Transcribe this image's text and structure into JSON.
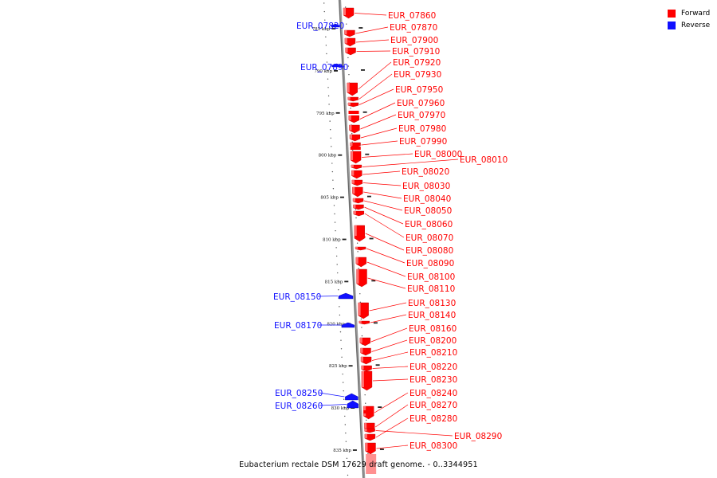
{
  "legend": {
    "forward_label": "Forward",
    "reverse_label": "Reverse",
    "forward_color": "#ff0000",
    "reverse_color": "#1010ff"
  },
  "footer": "Eubacterium rectale DSM 17629 draft genome. - 0..3344951",
  "ticks": [
    {
      "kbp": 785,
      "label": "785 kbp"
    },
    {
      "kbp": 790,
      "label": "790 kbp"
    },
    {
      "kbp": 795,
      "label": "795 kbp"
    },
    {
      "kbp": 800,
      "label": "800 kbp"
    },
    {
      "kbp": 805,
      "label": "805 kbp"
    },
    {
      "kbp": 810,
      "label": "810 kbp"
    },
    {
      "kbp": 815,
      "label": "815 kbp"
    },
    {
      "kbp": 820,
      "label": "820 kbp"
    },
    {
      "kbp": 825,
      "label": "825 kbp"
    },
    {
      "kbp": 830,
      "label": "830 kbp"
    },
    {
      "kbp": 835,
      "label": "835 kbp"
    }
  ],
  "genes": [
    {
      "name": "EUR_07820",
      "strand": "reverse"
    },
    {
      "name": "EUR_07860",
      "strand": "forward"
    },
    {
      "name": "EUR_07870",
      "strand": "forward"
    },
    {
      "name": "EUR_07890",
      "strand": "reverse"
    },
    {
      "name": "EUR_07900",
      "strand": "forward"
    },
    {
      "name": "EUR_07910",
      "strand": "forward"
    },
    {
      "name": "EUR_07920",
      "strand": "forward"
    },
    {
      "name": "EUR_07930",
      "strand": "forward"
    },
    {
      "name": "EUR_07950",
      "strand": "forward"
    },
    {
      "name": "EUR_07960",
      "strand": "forward"
    },
    {
      "name": "EUR_07970",
      "strand": "forward"
    },
    {
      "name": "EUR_07980",
      "strand": "forward"
    },
    {
      "name": "EUR_07990",
      "strand": "forward"
    },
    {
      "name": "EUR_08000",
      "strand": "forward"
    },
    {
      "name": "EUR_08010",
      "strand": "forward"
    },
    {
      "name": "EUR_08020",
      "strand": "forward"
    },
    {
      "name": "EUR_08030",
      "strand": "forward"
    },
    {
      "name": "EUR_08040",
      "strand": "forward"
    },
    {
      "name": "EUR_08050",
      "strand": "forward"
    },
    {
      "name": "EUR_08060",
      "strand": "forward"
    },
    {
      "name": "EUR_08070",
      "strand": "forward"
    },
    {
      "name": "EUR_08080",
      "strand": "forward"
    },
    {
      "name": "EUR_08090",
      "strand": "forward"
    },
    {
      "name": "EUR_08100",
      "strand": "forward"
    },
    {
      "name": "EUR_08110",
      "strand": "forward"
    },
    {
      "name": "EUR_08130",
      "strand": "forward"
    },
    {
      "name": "EUR_08140",
      "strand": "forward"
    },
    {
      "name": "EUR_08150",
      "strand": "reverse"
    },
    {
      "name": "EUR_08160",
      "strand": "forward"
    },
    {
      "name": "EUR_08170",
      "strand": "reverse"
    },
    {
      "name": "EUR_08200",
      "strand": "forward"
    },
    {
      "name": "EUR_08210",
      "strand": "forward"
    },
    {
      "name": "EUR_08220",
      "strand": "forward"
    },
    {
      "name": "EUR_08230",
      "strand": "forward"
    },
    {
      "name": "EUR_08240",
      "strand": "forward"
    },
    {
      "name": "EUR_08250",
      "strand": "reverse"
    },
    {
      "name": "EUR_08260",
      "strand": "reverse"
    },
    {
      "name": "EUR_08270",
      "strand": "forward"
    },
    {
      "name": "EUR_08280",
      "strand": "forward"
    },
    {
      "name": "EUR_08290",
      "strand": "forward"
    },
    {
      "name": "EUR_08300",
      "strand": "forward"
    }
  ]
}
